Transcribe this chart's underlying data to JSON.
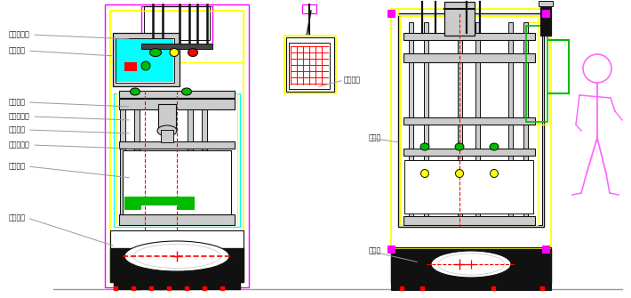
{
  "bg": "#ffffff",
  "Y": "#ffff00",
  "M": "#ff00ff",
  "C": "#00ffff",
  "G": "#00bb00",
  "R": "#ff0000",
  "K": "#111111",
  "GR": "#999999",
  "LG": "#cccccc",
  "W": "#ffffff",
  "PM": "#ff66ff",
  "DK": "#444444",
  "labels_left": [
    [
      "泄漏检测仪",
      10,
      296,
      148,
      291
    ],
    [
      "防护罩材",
      10,
      278,
      130,
      272
    ],
    [
      "顶面夹具",
      10,
      220,
      148,
      215
    ],
    [
      "顶面压紧杆",
      10,
      204,
      148,
      200
    ],
    [
      "设备立柱",
      10,
      189,
      148,
      185
    ],
    [
      "底座封堵板",
      10,
      172,
      148,
      168
    ],
    [
      "返料机底",
      10,
      148,
      148,
      135
    ],
    [
      "设备台架",
      10,
      90,
      130,
      58
    ]
  ],
  "labels_right": [
    [
      "操作面板",
      387,
      245,
      356,
      237
    ],
    [
      "电气柜",
      415,
      180,
      450,
      175
    ],
    [
      "储气罐",
      415,
      53,
      472,
      40
    ]
  ]
}
